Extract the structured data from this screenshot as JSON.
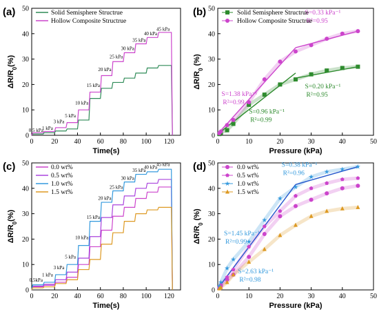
{
  "chart_data": [
    {
      "panel": "(a)",
      "type": "line",
      "xlabel": "Time(s)",
      "ylabel": "ΔR/R0(%)",
      "xlim": [
        0,
        130
      ],
      "ylim": [
        0,
        50
      ],
      "xticks": [
        0,
        20,
        40,
        60,
        80,
        100,
        120
      ],
      "yticks": [
        0,
        10,
        20,
        30,
        40,
        50
      ],
      "legend_position": "top-left",
      "step_labels": [
        "0.5 kPa",
        "1 kPa",
        "3 kPa",
        "5 kPa",
        "10 kPa",
        "15 kPa",
        "20 kPa",
        "25 kPa",
        "30 kPa",
        "35 kPa",
        "40 kPa",
        "45 kPa"
      ],
      "label_y": [
        1.4,
        2.2,
        4.8,
        7.0,
        12.1,
        19.0,
        25.3,
        30.3,
        33.6,
        36.8,
        39.4,
        41.2
      ],
      "step_times": [
        0,
        10,
        20,
        30,
        40,
        50,
        60,
        70,
        80,
        90,
        100,
        110,
        122
      ],
      "series": [
        {
          "name": "Solid Semisphere Structrue",
          "color": "#2e8b57",
          "values": [
            0.5,
            1.0,
            1.7,
            2.5,
            6.0,
            14.5,
            18.5,
            20.8,
            22.5,
            24.5,
            26.5,
            27.5
          ]
        },
        {
          "name": "Hollow Composite Structrue",
          "color": "#cc44cc",
          "values": [
            1.0,
            1.5,
            3.0,
            5.0,
            10.0,
            17.0,
            23.5,
            29.0,
            32.5,
            36.0,
            38.5,
            40.5
          ]
        }
      ]
    },
    {
      "panel": "(b)",
      "type": "scatter",
      "xlabel": "Pressure (kPa)",
      "ylabel": "ΔR/R0 (%)",
      "xlim": [
        0,
        50
      ],
      "ylim": [
        0,
        50
      ],
      "xticks": [
        0,
        10,
        20,
        30,
        40,
        50
      ],
      "yticks": [
        0,
        10,
        20,
        30,
        40,
        50
      ],
      "legend_position": "top-left",
      "x": [
        0.5,
        1,
        3,
        5,
        10,
        15,
        20,
        25,
        30,
        35,
        40,
        45
      ],
      "series": [
        {
          "name": "Solid Semisphere Structrue",
          "marker": "square",
          "color": "#2e8b2e",
          "values": [
            0.5,
            1.0,
            2.0,
            4.5,
            12.0,
            16.0,
            20.0,
            22.0,
            24.0,
            25.5,
            26.5,
            27.0
          ]
        },
        {
          "name": "Hollow Composite Structrue",
          "marker": "circle",
          "color": "#cc44cc",
          "values": [
            0.8,
            1.5,
            4.0,
            6.0,
            13.0,
            22.0,
            29.0,
            33.0,
            35.5,
            38.0,
            40.0,
            41.0
          ]
        }
      ],
      "fits": [
        {
          "color": "#2e8b2e",
          "x": [
            0,
            25
          ],
          "y": [
            0.5,
            24.5
          ]
        },
        {
          "color": "#2e8b2e",
          "x": [
            25,
            45
          ],
          "y": [
            22.5,
            27
          ]
        },
        {
          "color": "#cc44cc",
          "x": [
            0,
            25
          ],
          "y": [
            0.5,
            34.5
          ]
        },
        {
          "color": "#cc44cc",
          "x": [
            25,
            45
          ],
          "y": [
            34.5,
            41
          ]
        }
      ],
      "annotations": [
        {
          "s": "S=1.38 kPa⁻¹",
          "r": "R²=0.99",
          "color": "#cc44cc",
          "x": 1.2,
          "y": 15.5
        },
        {
          "s": "S=0.33 kPa⁻¹",
          "r": "R²=0.95",
          "color": "#cc44cc",
          "x": 28,
          "y": 47.5
        },
        {
          "s": "S=0.96 kPa⁻¹",
          "r": "R²=0.99",
          "color": "#2e8b2e",
          "x": 10,
          "y": 8.5
        },
        {
          "s": "S=0.20 kPa⁻¹",
          "r": "R²=0.95",
          "color": "#2e8b2e",
          "x": 28,
          "y": 18.5
        }
      ]
    },
    {
      "panel": "(c)",
      "type": "line",
      "xlabel": "Time(s)",
      "ylabel": "ΔR/R0(%)",
      "xlim": [
        0,
        130
      ],
      "ylim": [
        0,
        50
      ],
      "xticks": [
        0,
        20,
        40,
        60,
        80,
        100,
        120
      ],
      "yticks": [
        0,
        10,
        20,
        30,
        40,
        50
      ],
      "legend_position": "top-left",
      "step_labels": [
        "0.5kPa",
        "1 kPa",
        "3 kPa",
        "5 kPa",
        "10 kPa",
        "15 kPa",
        "20 kPa",
        "25 kPa",
        "30 kPa",
        "35 kPa",
        "40 kPa",
        "45 kPa"
      ],
      "label_y": [
        3.2,
        5.3,
        8.2,
        12.3,
        20.0,
        28.0,
        35.4,
        39.8,
        43.4,
        46.4,
        47.7,
        48.8
      ],
      "step_times": [
        0,
        10,
        20,
        30,
        40,
        50,
        60,
        70,
        80,
        90,
        100,
        110,
        122
      ],
      "series": [
        {
          "name": "0.0 wt%",
          "color": "#cc44cc",
          "values": [
            1.2,
            1.8,
            3.0,
            5.0,
            10.0,
            17.0,
            23.5,
            29.0,
            32.5,
            36.0,
            38.5,
            40.5
          ]
        },
        {
          "name": "0.5 wt%",
          "color": "#aa44dd",
          "values": [
            1.5,
            2.2,
            4.0,
            7.0,
            12.5,
            21.0,
            28.5,
            33.5,
            37.0,
            40.0,
            42.0,
            43.5
          ]
        },
        {
          "name": "1.0 wt%",
          "color": "#3399dd",
          "values": [
            2.0,
            3.0,
            6.0,
            10.0,
            17.5,
            27.0,
            34.5,
            39.0,
            42.5,
            45.5,
            46.5,
            47.5
          ]
        },
        {
          "name": "1.5 wt%",
          "color": "#dd9922",
          "values": [
            0.8,
            1.2,
            2.5,
            4.0,
            8.0,
            12.0,
            18.0,
            22.5,
            27.0,
            30.0,
            31.5,
            32.5
          ]
        }
      ]
    },
    {
      "panel": "(d)",
      "type": "scatter",
      "xlabel": "Pressure (kPa)",
      "ylabel": "ΔR/R0 (%)",
      "xlim": [
        0,
        50
      ],
      "ylim": [
        0,
        50
      ],
      "xticks": [
        0,
        10,
        20,
        30,
        40,
        50
      ],
      "yticks": [
        0,
        10,
        20,
        30,
        40,
        50
      ],
      "legend_position": "top-left",
      "x": [
        0.5,
        1,
        3,
        5,
        10,
        15,
        20,
        25,
        30,
        35,
        40,
        45
      ],
      "series": [
        {
          "name": "0.0 wt%",
          "marker": "circle",
          "color": "#cc44cc",
          "values": [
            0.8,
            1.5,
            4.0,
            6.0,
            13.0,
            22.0,
            29.0,
            33.0,
            35.5,
            38.0,
            40.0,
            41.0
          ]
        },
        {
          "name": "0.5 wt%",
          "marker": "pentagon",
          "color": "#cc44cc",
          "values": [
            1.0,
            2.0,
            5.0,
            8.0,
            17.0,
            25.0,
            31.0,
            37.0,
            40.0,
            42.0,
            43.5,
            44.0
          ]
        },
        {
          "name": "1.0 wt%",
          "marker": "star",
          "color": "#3399dd",
          "values": [
            1.5,
            3.0,
            8.5,
            12.0,
            19.0,
            27.5,
            36.0,
            40.5,
            44.5,
            46.5,
            47.5,
            48.5
          ]
        },
        {
          "name": "1.5 wt%",
          "marker": "triangle",
          "color": "#dd9922",
          "values": [
            0.5,
            1.0,
            3.0,
            6.0,
            11.0,
            16.0,
            21.5,
            25.5,
            29.0,
            31.0,
            32.0,
            32.5
          ]
        }
      ],
      "fits": [
        {
          "color": "#2255cc",
          "x": [
            0,
            25
          ],
          "y": [
            0.5,
            41.5
          ]
        },
        {
          "color": "#2255cc",
          "x": [
            25,
            45
          ],
          "y": [
            41.5,
            48.5
          ]
        }
      ],
      "annotations": [
        {
          "s": "S=0.38 kPa⁻¹",
          "r": "R²=0.96",
          "color": "#3399dd",
          "x": 20.5,
          "y": 48.5
        },
        {
          "s": "S=1.45 kPa⁻¹",
          "r": "R²=0.99",
          "color": "#3399dd",
          "x": 2,
          "y": 21.5
        },
        {
          "s": "S=2.63 kPa⁻¹",
          "r": "R²=0.98",
          "color": "#3399dd",
          "x": 6.5,
          "y": 6.5
        }
      ]
    }
  ]
}
